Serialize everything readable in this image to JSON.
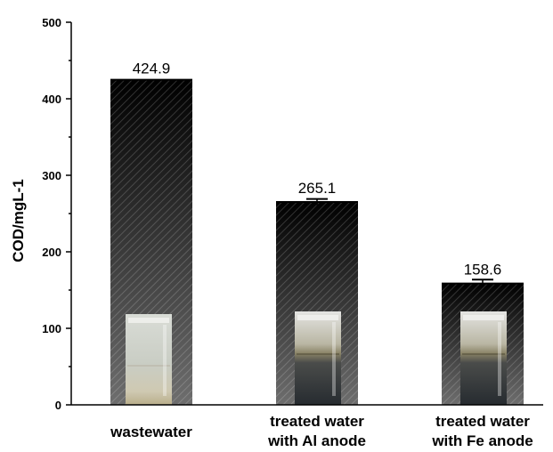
{
  "chart_data": {
    "type": "bar",
    "title": "",
    "xlabel": "",
    "ylabel": "COD/mgL-1",
    "ylim": [
      0,
      500
    ],
    "yticks": [
      0,
      100,
      200,
      300,
      400,
      500
    ],
    "categories": [
      [
        "wastewater"
      ],
      [
        "treated water",
        "with Al anode"
      ],
      [
        "treated water",
        "with Fe anode"
      ]
    ],
    "values": [
      424.9,
      265.1,
      158.6
    ],
    "value_labels": [
      "424.9",
      "265.1",
      "158.6"
    ],
    "error": [
      0,
      4,
      5
    ],
    "bar_fill": "hatched dark gradient",
    "grid": false,
    "legend": "none",
    "colors": {
      "bar_top": "#000000",
      "bar_bottom": "#6a6a6a",
      "axis": "#000000"
    },
    "inset_images": [
      "clear-water-beaker-photo",
      "dark-sludge-beaker-photo",
      "dark-sludge-beaker-photo"
    ]
  }
}
